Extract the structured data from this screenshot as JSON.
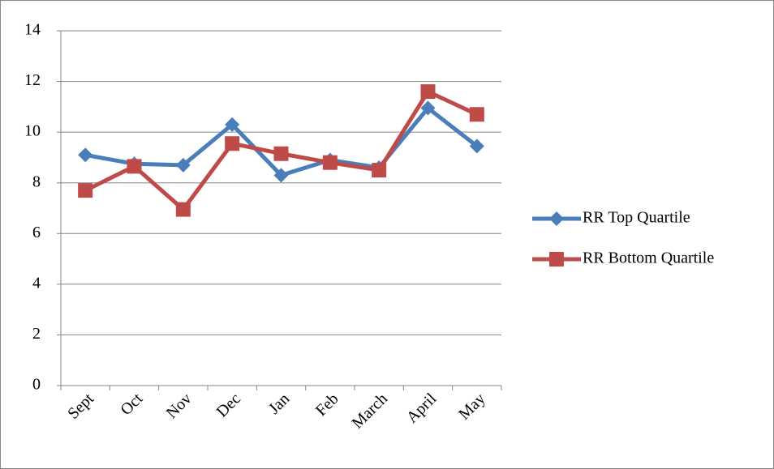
{
  "chart_data": {
    "type": "line",
    "categories": [
      "Sept",
      "Oct",
      "Nov",
      "Dec",
      "Jan",
      "Feb",
      "March",
      "April",
      "May"
    ],
    "series": [
      {
        "name": "RR Top Quartile",
        "color": "#4a7ebb",
        "marker": "diamond",
        "values": [
          9.1,
          8.75,
          8.7,
          10.3,
          8.3,
          8.9,
          8.6,
          10.95,
          9.45
        ]
      },
      {
        "name": "RR Bottom Quartile",
        "color": "#be4b48",
        "marker": "square",
        "values": [
          7.7,
          8.65,
          6.95,
          9.55,
          9.15,
          8.8,
          8.5,
          11.6,
          10.7
        ]
      }
    ],
    "ylim": [
      0,
      14
    ],
    "yticks": [
      0,
      2,
      4,
      6,
      8,
      10,
      12,
      14
    ],
    "grid": true,
    "legend": "right"
  }
}
